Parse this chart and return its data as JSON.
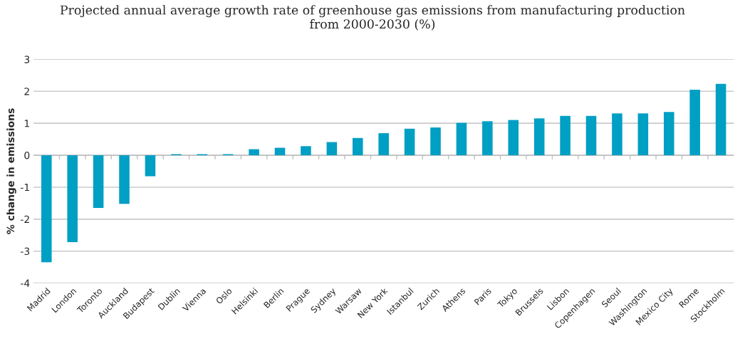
{
  "chart_data": {
    "type": "bar",
    "title": "Projected annual average growth rate of greenhouse gas emissions from manufacturing production\nfrom 2000-2030 (%)",
    "ylabel": "% change in emissions",
    "categories": [
      "Madrid",
      "London",
      "Toronto",
      "Auckland",
      "Budapest",
      "Dublin",
      "Vienna",
      "Oslo",
      "Helsinki",
      "Berlin",
      "Prague",
      "Sydney",
      "Warsaw",
      "New York",
      "Istanbul",
      "Zurich",
      "Athens",
      "Paris",
      "Tokyo",
      "Brussels",
      "Lisbon",
      "Copenhagen",
      "Seoul",
      "Washington",
      "Mexico City",
      "Rome",
      "Stockholm"
    ],
    "values": [
      -3.35,
      -2.72,
      -1.65,
      -1.52,
      -0.66,
      0.03,
      0.03,
      0.03,
      0.19,
      0.23,
      0.28,
      0.41,
      0.54,
      0.69,
      0.83,
      0.87,
      1.01,
      1.06,
      1.1,
      1.15,
      1.23,
      1.23,
      1.31,
      1.31,
      1.35,
      2.05,
      2.23
    ],
    "color": "#009fc4",
    "ylim": [
      -4,
      3
    ],
    "yticks": [
      -4,
      -3,
      -2,
      -1,
      0,
      1,
      2,
      3
    ],
    "grid": "y",
    "legend": false
  }
}
